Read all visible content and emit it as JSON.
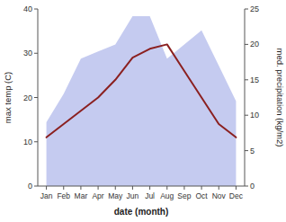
{
  "chart_data": {
    "type": "line",
    "xlabel": "date (month)",
    "ylabel": "max temp (C)",
    "y2label": "med. precipitation (kg/m2)",
    "categories": [
      "Jan",
      "Feb",
      "Mar",
      "Apr",
      "May",
      "Jun",
      "Jul",
      "Aug",
      "Sep",
      "Oct",
      "Nov",
      "Dec"
    ],
    "series": [
      {
        "type": "line",
        "color": "#8b2020",
        "values": [
          11,
          14,
          17,
          20,
          24,
          29,
          31,
          32,
          26,
          20,
          14,
          11
        ]
      },
      {
        "type": "area",
        "axis": "y2",
        "color": "#c5cbf0",
        "values": [
          9,
          13,
          18,
          19,
          20,
          24,
          24,
          18,
          20,
          22,
          17,
          12
        ]
      }
    ],
    "ylim": [
      0,
      40
    ],
    "yticks": [
      0,
      10,
      20,
      30,
      40
    ],
    "y2lim": [
      0,
      25
    ],
    "y2ticks": [
      0,
      5,
      10,
      15,
      20,
      25
    ],
    "grid": false
  }
}
